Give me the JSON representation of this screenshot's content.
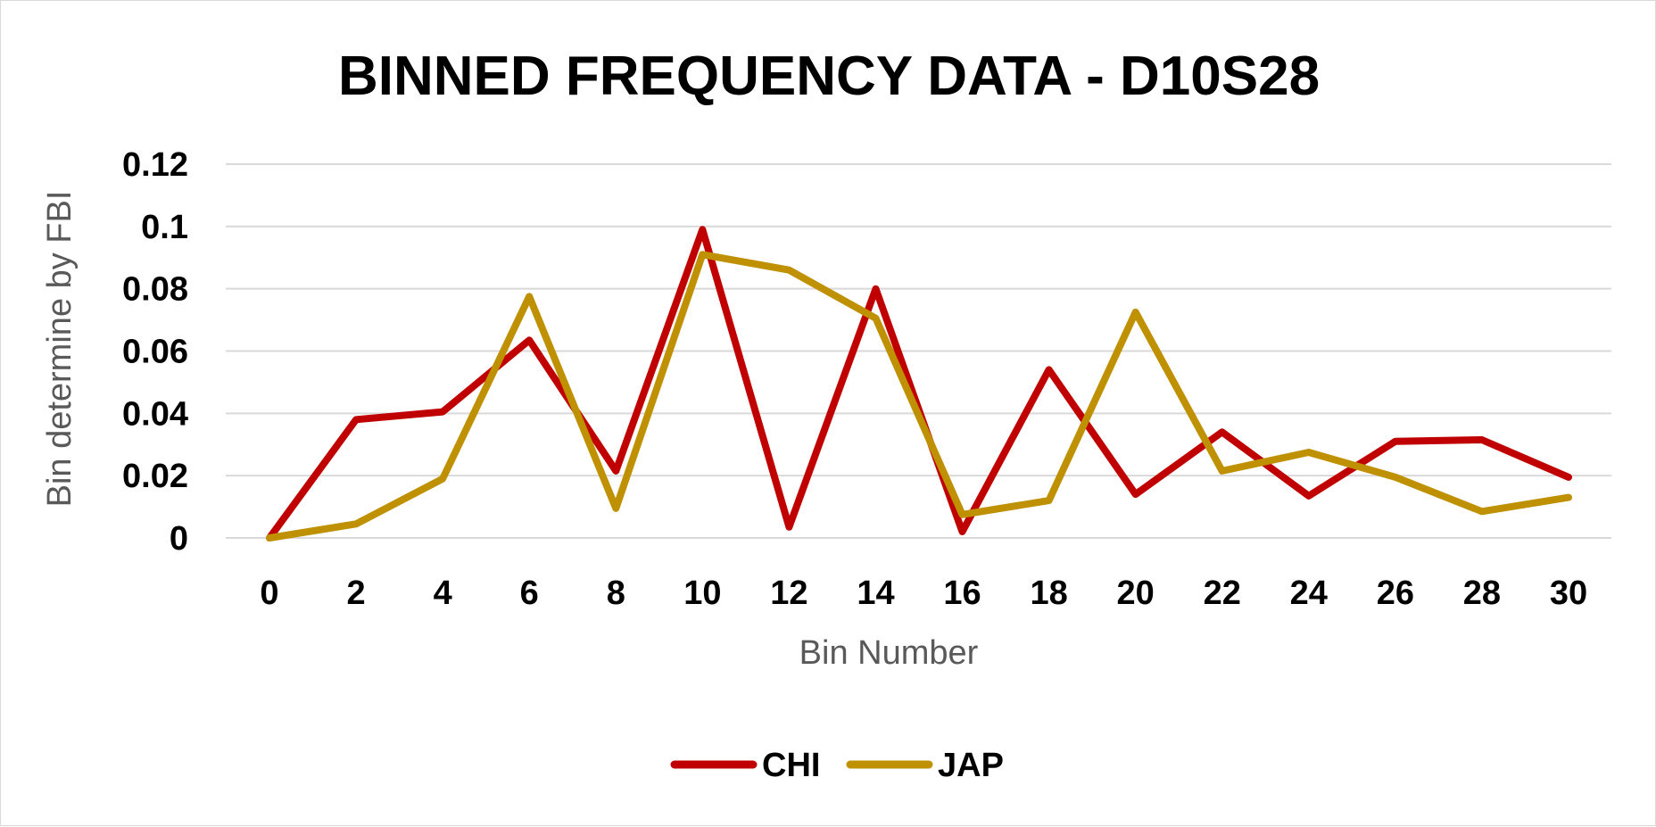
{
  "chart_data": {
    "type": "line",
    "title": "BINNED FREQUENCY DATA - D10S28",
    "xlabel": "Bin Number",
    "ylabel": "Bin determine by FBI",
    "x": [
      0,
      2,
      4,
      6,
      8,
      10,
      12,
      14,
      16,
      18,
      20,
      22,
      24,
      26,
      28,
      30
    ],
    "x_tick_labels": [
      "0",
      "2",
      "4",
      "6",
      "8",
      "10",
      "12",
      "14",
      "16",
      "18",
      "20",
      "22",
      "24",
      "26",
      "28",
      "30"
    ],
    "y_tick_labels": [
      "0",
      "0.02",
      "0.04",
      "0.06",
      "0.08",
      "0.1",
      "0.12"
    ],
    "y_ticks": [
      0,
      0.02,
      0.04,
      0.06,
      0.08,
      0.1,
      0.12
    ],
    "ylim": [
      0,
      0.12
    ],
    "grid": true,
    "legend_position": "bottom",
    "series": [
      {
        "name": "CHI",
        "color": "#C00000",
        "values": [
          0,
          0.038,
          0.0405,
          0.0635,
          0.0215,
          0.099,
          0.0035,
          0.08,
          0.002,
          0.054,
          0.014,
          0.034,
          0.0135,
          0.031,
          0.0315,
          0.0195
        ]
      },
      {
        "name": "JAP",
        "color": "#BF9000",
        "values": [
          0,
          0.0045,
          0.019,
          0.0775,
          0.0095,
          0.091,
          0.086,
          0.0705,
          0.0075,
          0.012,
          0.0725,
          0.0215,
          0.0275,
          0.0195,
          0.0085,
          0.013
        ]
      }
    ]
  }
}
